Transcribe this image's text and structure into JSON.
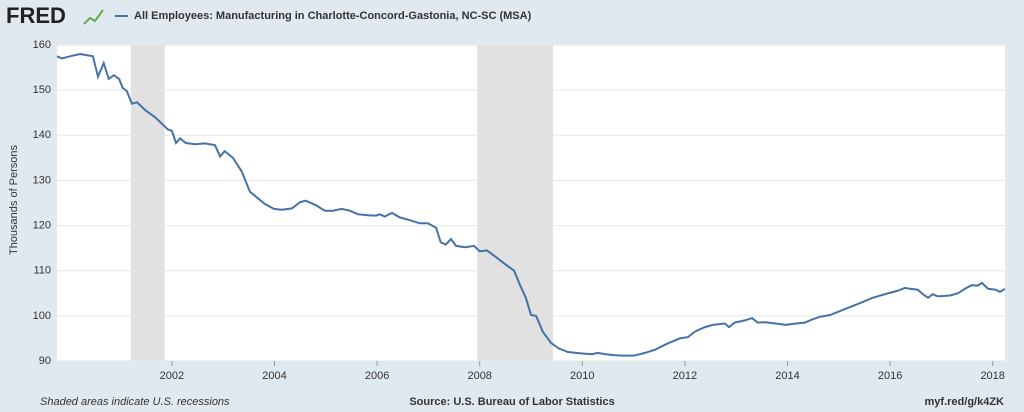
{
  "header": {
    "logo": "FRED"
  },
  "chart_data": {
    "type": "line",
    "y_label": "Thousands of Persons",
    "x": [
      1999.76,
      1999.86,
      2000.01,
      2000.21,
      2000.46,
      2000.56,
      2000.67,
      2000.77,
      2000.87,
      2000.97,
      2001.04,
      2001.12,
      2001.22,
      2001.32,
      2001.49,
      2001.67,
      2001.81,
      2001.92,
      2002.0,
      2002.08,
      2002.16,
      2002.27,
      2002.45,
      2002.64,
      2002.84,
      2002.94,
      2003.03,
      2003.19,
      2003.36,
      2003.52,
      2003.68,
      2003.81,
      2003.99,
      2004.14,
      2004.34,
      2004.5,
      2004.61,
      2004.81,
      2004.98,
      2005.14,
      2005.31,
      2005.47,
      2005.63,
      2005.82,
      2005.98,
      2006.05,
      2006.15,
      2006.29,
      2006.44,
      2006.64,
      2006.83,
      2006.99,
      2007.15,
      2007.24,
      2007.34,
      2007.44,
      2007.54,
      2007.71,
      2007.89,
      2008.0,
      2008.14,
      2008.32,
      2008.49,
      2008.67,
      2008.78,
      2008.9,
      2009.0,
      2009.1,
      2009.23,
      2009.39,
      2009.54,
      2009.72,
      2009.95,
      2010.19,
      2010.3,
      2010.46,
      2010.62,
      2010.77,
      2011.01,
      2011.22,
      2011.42,
      2011.65,
      2011.9,
      2012.06,
      2012.19,
      2012.39,
      2012.55,
      2012.78,
      2012.86,
      2012.97,
      2013.17,
      2013.31,
      2013.42,
      2013.56,
      2013.77,
      2013.97,
      2014.16,
      2014.34,
      2014.48,
      2014.63,
      2014.83,
      2015.12,
      2015.41,
      2015.66,
      2015.96,
      2016.13,
      2016.29,
      2016.39,
      2016.54,
      2016.64,
      2016.74,
      2016.83,
      2016.93,
      2017.17,
      2017.32,
      2017.46,
      2017.59,
      2017.71,
      2017.79,
      2017.91,
      2018.06,
      2018.14,
      2018.24
    ],
    "series": [
      {
        "name": "All Employees: Manufacturing in Charlotte-Concord-Gastonia, NC-SC (MSA)",
        "color": "#4572a7",
        "values": [
          157.5,
          157,
          157.5,
          158,
          157.5,
          153,
          156,
          152.5,
          153.3,
          152.5,
          150.5,
          149.8,
          147,
          147.3,
          145.5,
          144,
          142.5,
          141.3,
          141,
          138.3,
          139.3,
          138.3,
          138,
          138.2,
          137.8,
          135.3,
          136.5,
          135,
          132,
          127.5,
          126,
          124.8,
          123.7,
          123.5,
          123.8,
          125.2,
          125.5,
          124.5,
          123.3,
          123.3,
          123.7,
          123.3,
          122.5,
          122.3,
          122.2,
          122.5,
          122,
          122.8,
          121.8,
          121.2,
          120.5,
          120.5,
          119.5,
          116.3,
          115.8,
          117,
          115.5,
          115.2,
          115.5,
          114.3,
          114.5,
          113,
          111.5,
          110,
          107,
          104,
          100.2,
          100,
          96.5,
          94,
          92.8,
          92,
          91.7,
          91.5,
          91.8,
          91.5,
          91.3,
          91.2,
          91.2,
          91.8,
          92.5,
          93.8,
          95,
          95.3,
          96.5,
          97.5,
          98,
          98.3,
          97.5,
          98.5,
          99,
          99.5,
          98.5,
          98.6,
          98.3,
          98,
          98.3,
          98.5,
          99.2,
          99.8,
          100.2,
          101.5,
          102.8,
          104,
          105,
          105.5,
          106.2,
          106,
          105.8,
          104.8,
          104,
          104.8,
          104.3,
          104.5,
          105,
          106,
          106.8,
          106.7,
          107.3,
          106,
          105.8,
          105.3,
          106
        ]
      }
    ],
    "recessions": [
      [
        2001.2,
        2001.86
      ],
      [
        2007.95,
        2009.43
      ]
    ],
    "xlim": [
      1999.76,
      2018.24
    ],
    "xticks": [
      2002,
      2004,
      2006,
      2008,
      2010,
      2012,
      2014,
      2016,
      2018
    ],
    "ylim": [
      90,
      160
    ],
    "yticks": [
      90,
      100,
      110,
      120,
      130,
      140,
      150,
      160
    ],
    "grid": true
  },
  "footer": {
    "note": "Shaded areas indicate U.S. recessions",
    "source": "Source: U.S. Bureau of Labor Statistics",
    "link": "myf.red/g/k4ZK"
  }
}
